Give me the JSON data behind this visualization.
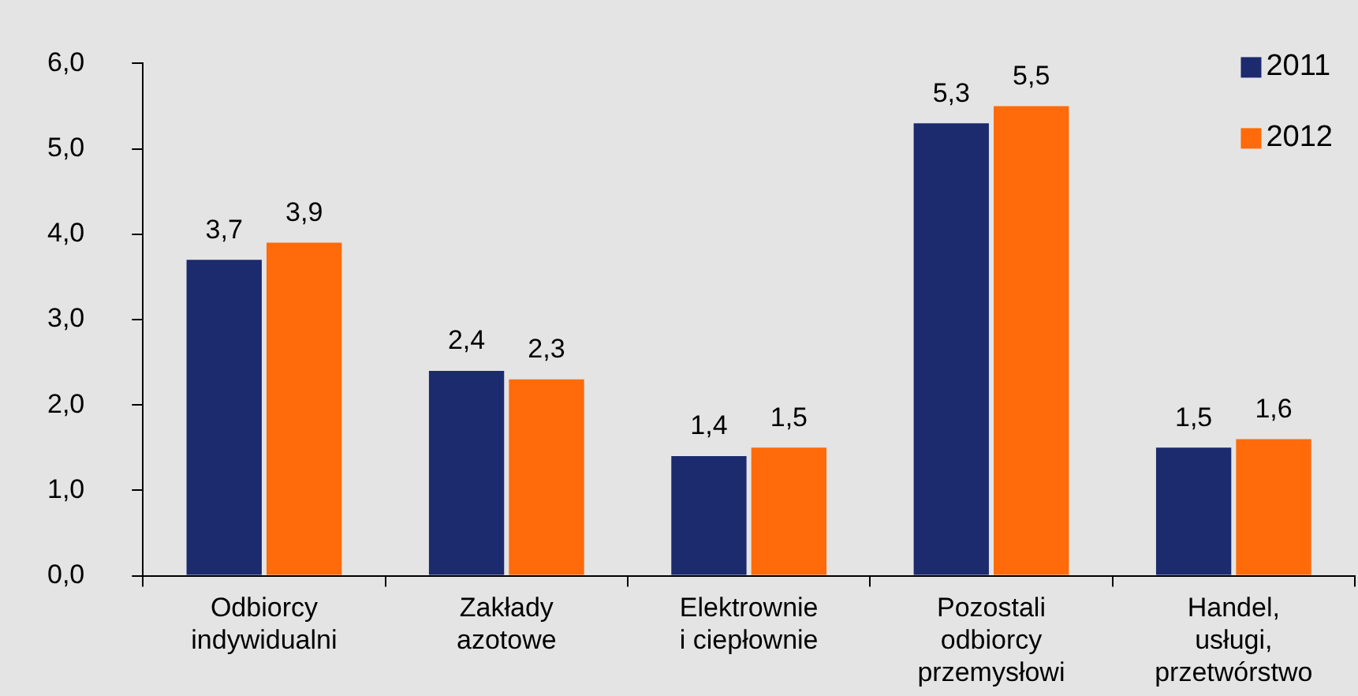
{
  "chart_data": {
    "type": "bar",
    "categories": [
      "Odbiorcy\nindywidualni",
      "Zakłady\nazotowe",
      "Elektrownie\ni ciepłownie",
      "Pozostali\nodbiorcy\nprzemysłowi",
      "Handel,\nusługi,\nprzetwórstwo"
    ],
    "series": [
      {
        "name": "2011",
        "color": "#1c2a6e",
        "values": [
          3.7,
          2.4,
          1.4,
          5.3,
          1.5
        ],
        "value_labels": [
          "3,7",
          "2,4",
          "1,4",
          "5,3",
          "1,5"
        ]
      },
      {
        "name": "2012",
        "color": "#ff6a0a",
        "values": [
          3.9,
          2.3,
          1.5,
          5.5,
          1.6
        ],
        "value_labels": [
          "3,9",
          "2,3",
          "1,5",
          "5,5",
          "1,6"
        ]
      }
    ],
    "ylim": [
      0,
      6
    ],
    "yticks": [
      {
        "value": 0,
        "label": "0,0"
      },
      {
        "value": 1,
        "label": "1,0"
      },
      {
        "value": 2,
        "label": "2,0"
      },
      {
        "value": 3,
        "label": "3,0"
      },
      {
        "value": 4,
        "label": "4,0"
      },
      {
        "value": 5,
        "label": "5,0"
      },
      {
        "value": 6,
        "label": "6,0"
      }
    ],
    "grid": false,
    "legend": "top right"
  }
}
